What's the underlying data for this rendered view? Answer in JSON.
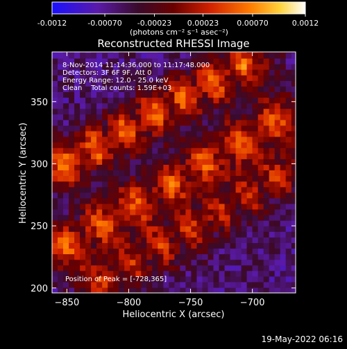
{
  "chart_data": {
    "type": "heatmap",
    "title": "Reconstructed RHESSI Image",
    "xlabel": "Heliocentric X (arcsec)",
    "ylabel": "Heliocentric Y (arcsec)",
    "xlim": [
      -862,
      -665
    ],
    "ylim": [
      196,
      390
    ],
    "x_ticks": [
      -850,
      -800,
      -750,
      -700
    ],
    "y_ticks": [
      200,
      250,
      300,
      350
    ],
    "colorbar": {
      "ticks": [
        "-0.0012",
        "-0.00070",
        "-0.00023",
        "0.00023",
        "0.00070",
        "0.0012"
      ],
      "tick_values": [
        -0.0012,
        -0.0007,
        -0.00023,
        0.00023,
        0.0007,
        0.0012
      ],
      "units": "(photons cm⁻² s⁻¹ asec⁻²)",
      "range": [
        -0.0012,
        0.0012
      ],
      "colormap": "blue-purple-red-orange-yellow-white"
    },
    "annotations": [
      "8-Nov-2014 11:14:36.000 to 11:17:48.000",
      "Detectors: 3F 6F 9F, Att 0",
      "Energy Range: 12.0 - 25.0 keV",
      "Clean    Total counts: 1.59E+03"
    ],
    "peak_label": "Position of Peak = [-728,365]",
    "peak": [
      -728,
      365
    ],
    "features": [
      {
        "kind": "ridge",
        "from": [
          -850,
          300
        ],
        "to": [
          -700,
          385
        ],
        "peak_value": 0.0012
      },
      {
        "kind": "ridge",
        "from": [
          -850,
          235
        ],
        "to": [
          -672,
          340
        ],
        "peak_value": 0.0011
      },
      {
        "kind": "ridge",
        "from": [
          -820,
          205
        ],
        "to": [
          -672,
          295
        ],
        "peak_value": 0.0009
      }
    ]
  },
  "footer_date": "19-May-2022 06:16"
}
